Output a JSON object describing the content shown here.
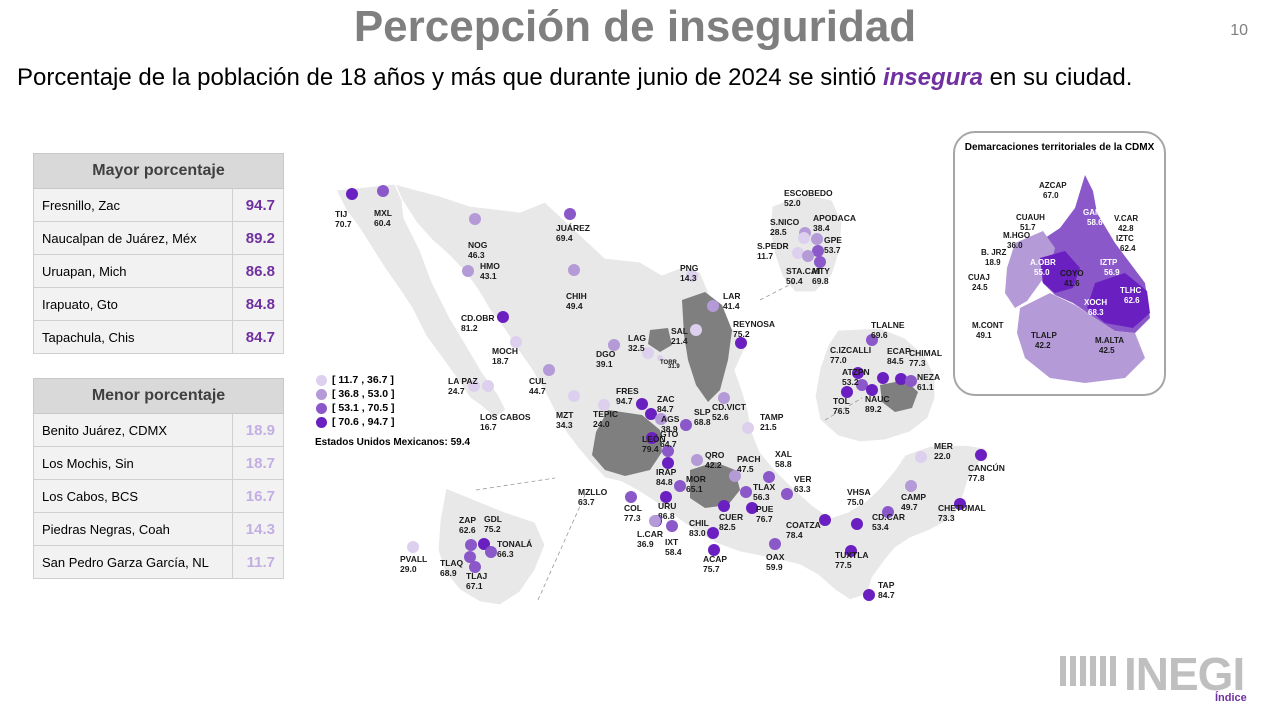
{
  "header": {
    "title": "Percepción de inseguridad",
    "page_number": "10",
    "subtitle_before": "Porcentaje de la población de 18 años y más que durante junio de 2024 se sintió ",
    "subtitle_highlight": "insegura",
    "subtitle_after": " en su ciudad."
  },
  "tables": {
    "mayor": {
      "header": "Mayor porcentaje",
      "rows": [
        {
          "city": "Fresnillo, Zac",
          "value": "94.7"
        },
        {
          "city": "Naucalpan de Juárez, Méx",
          "value": "89.2"
        },
        {
          "city": "Uruapan, Mich",
          "value": "86.8"
        },
        {
          "city": "Irapuato, Gto",
          "value": "84.8"
        },
        {
          "city": "Tapachula, Chis",
          "value": "84.7"
        }
      ]
    },
    "menor": {
      "header": "Menor porcentaje",
      "rows": [
        {
          "city": "Benito Juárez, CDMX",
          "value": "18.9"
        },
        {
          "city": "Los Mochis, Sin",
          "value": "18.7"
        },
        {
          "city": "Los Cabos, BCS",
          "value": "16.7"
        },
        {
          "city": "Piedras Negras, Coah",
          "value": "14.3"
        },
        {
          "city": "San Pedro Garza García, NL",
          "value": "11.7"
        }
      ]
    }
  },
  "legend": {
    "ranges": [
      {
        "label": "[ 11.7 , 36.7 ]",
        "color": "#ddd0ee"
      },
      {
        "label": "[ 36.8 , 53.0 ]",
        "color": "#b49ad6"
      },
      {
        "label": "[ 53.1 , 70.5 ]",
        "color": "#8a58c8"
      },
      {
        "label": "[ 70.6 , 94.7 ]",
        "color": "#6a1fc0"
      }
    ],
    "national_label": "Estados Unidos Mexicanos:",
    "national_value": "59.4"
  },
  "colors": {
    "accent": "#7030a0",
    "land": "#e8e8e8",
    "highlighted_state": "#7f7f7f",
    "cat1": "#ddd0ee",
    "cat2": "#b49ad6",
    "cat3": "#8a58c8",
    "cat4": "#6a1fc0"
  },
  "cities": [
    {
      "name": "TIJ",
      "value": "70.7",
      "cat": 4
    },
    {
      "name": "MXL",
      "value": "60.4",
      "cat": 3
    },
    {
      "name": "NOG",
      "value": "46.3",
      "cat": 2
    },
    {
      "name": "HMO",
      "value": "43.1",
      "cat": 2
    },
    {
      "name": "JUÁREZ",
      "value": "69.4",
      "cat": 3
    },
    {
      "name": "CHIH",
      "value": "49.4",
      "cat": 2
    },
    {
      "name": "CD.OBR",
      "value": "81.2",
      "cat": 4
    },
    {
      "name": "MOCH",
      "value": "18.7",
      "cat": 1
    },
    {
      "name": "LA PAZ",
      "value": "24.7",
      "cat": 1
    },
    {
      "name": "LOS CABOS",
      "value": "16.7",
      "cat": 1
    },
    {
      "name": "CUL",
      "value": "44.7",
      "cat": 2
    },
    {
      "name": "MZT",
      "value": "34.3",
      "cat": 1
    },
    {
      "name": "DGO",
      "value": "39.1",
      "cat": 2
    },
    {
      "name": "LAG",
      "value": "32.5",
      "cat": 1
    },
    {
      "name": "TORR",
      "value": "31.9",
      "cat": 1
    },
    {
      "name": "SAL",
      "value": "21.4",
      "cat": 1
    },
    {
      "name": "PNG",
      "value": "14.3",
      "cat": 1
    },
    {
      "name": "LAR",
      "value": "41.4",
      "cat": 2
    },
    {
      "name": "REYNOSA",
      "value": "75.2",
      "cat": 4
    },
    {
      "name": "ESCOBEDO",
      "value": "52.0",
      "cat": 2
    },
    {
      "name": "S.NICO",
      "value": "28.5",
      "cat": 1
    },
    {
      "name": "APODACA",
      "value": "38.4",
      "cat": 2
    },
    {
      "name": "S.PEDR",
      "value": "11.7",
      "cat": 1
    },
    {
      "name": "GPE",
      "value": "53.7",
      "cat": 3
    },
    {
      "name": "STA.CAT",
      "value": "50.4",
      "cat": 2
    },
    {
      "name": "MTY",
      "value": "69.8",
      "cat": 3
    },
    {
      "name": "FRES",
      "value": "94.7",
      "cat": 4
    },
    {
      "name": "ZAC",
      "value": "84.7",
      "cat": 4
    },
    {
      "name": "TEPIC",
      "value": "24.0",
      "cat": 1
    },
    {
      "name": "AGS",
      "value": "38.9",
      "cat": 2
    },
    {
      "name": "SLP",
      "value": "68.8",
      "cat": 3
    },
    {
      "name": "CD.VICT",
      "value": "52.6",
      "cat": 2
    },
    {
      "name": "TAMP",
      "value": "21.5",
      "cat": 1
    },
    {
      "name": "LEÓN",
      "value": "79.4",
      "cat": 4
    },
    {
      "name": "GTO",
      "value": "64.7",
      "cat": 3
    },
    {
      "name": "IRAP",
      "value": "84.8",
      "cat": 4
    },
    {
      "name": "QRO",
      "value": "42.2",
      "cat": 2
    },
    {
      "name": "MOR",
      "value": "65.1",
      "cat": 3
    },
    {
      "name": "URU",
      "value": "86.8",
      "cat": 4
    },
    {
      "name": "PACH",
      "value": "47.5",
      "cat": 2
    },
    {
      "name": "XAL",
      "value": "58.8",
      "cat": 3
    },
    {
      "name": "TLAX",
      "value": "56.3",
      "cat": 3
    },
    {
      "name": "VER",
      "value": "63.3",
      "cat": 3
    },
    {
      "name": "PUE",
      "value": "76.7",
      "cat": 4
    },
    {
      "name": "CUER",
      "value": "82.5",
      "cat": 4
    },
    {
      "name": "MZLLO",
      "value": "63.7",
      "cat": 3
    },
    {
      "name": "COL",
      "value": "77.3",
      "cat": 4
    },
    {
      "name": "L.CAR",
      "value": "36.9",
      "cat": 2
    },
    {
      "name": "IXT",
      "value": "58.4",
      "cat": 3
    },
    {
      "name": "CHIL",
      "value": "83.0",
      "cat": 4
    },
    {
      "name": "ACAP",
      "value": "75.7",
      "cat": 4
    },
    {
      "name": "OAX",
      "value": "59.9",
      "cat": 3
    },
    {
      "name": "COATZA",
      "value": "78.4",
      "cat": 4
    },
    {
      "name": "VHSA",
      "value": "75.0",
      "cat": 4
    },
    {
      "name": "CD.CAR",
      "value": "53.4",
      "cat": 3
    },
    {
      "name": "CAMP",
      "value": "49.7",
      "cat": 2
    },
    {
      "name": "TUXTLA",
      "value": "77.5",
      "cat": 4
    },
    {
      "name": "TAP",
      "value": "84.7",
      "cat": 4
    },
    {
      "name": "MER",
      "value": "22.0",
      "cat": 1
    },
    {
      "name": "CANCÚN",
      "value": "77.8",
      "cat": 4
    },
    {
      "name": "CHETUMAL",
      "value": "73.3",
      "cat": 4
    },
    {
      "name": "ZAP",
      "value": "62.6",
      "cat": 3
    },
    {
      "name": "GDL",
      "value": "75.2",
      "cat": 4
    },
    {
      "name": "TLAQ",
      "value": "68.9",
      "cat": 3
    },
    {
      "name": "TONALÁ",
      "value": "66.3",
      "cat": 3
    },
    {
      "name": "TLAJ",
      "value": "67.1",
      "cat": 3
    },
    {
      "name": "PVALL",
      "value": "29.0",
      "cat": 1
    },
    {
      "name": "TLALNE",
      "value": "69.6",
      "cat": 3
    },
    {
      "name": "C.IZCALLI",
      "value": "77.0",
      "cat": 4
    },
    {
      "name": "ECAP",
      "value": "84.5",
      "cat": 4
    },
    {
      "name": "CHIMAL",
      "value": "77.3",
      "cat": 4
    },
    {
      "name": "ATZPN",
      "value": "53.2",
      "cat": 3
    },
    {
      "name": "NEZA",
      "value": "61.1",
      "cat": 3
    },
    {
      "name": "TOL",
      "value": "76.5",
      "cat": 4
    },
    {
      "name": "NAUC",
      "value": "89.2",
      "cat": 4
    }
  ],
  "cdmx": {
    "title": "Demarcaciones territoriales de la CDMX",
    "alcaldias": [
      {
        "name": "AZCAP",
        "value": "67.0"
      },
      {
        "name": "GAM",
        "value": "58.6"
      },
      {
        "name": "CUAUH",
        "value": "51.7"
      },
      {
        "name": "V.CAR",
        "value": "42.8"
      },
      {
        "name": "M.HGO",
        "value": "36.0"
      },
      {
        "name": "IZTC",
        "value": "62.4"
      },
      {
        "name": "B. JRZ",
        "value": "18.9"
      },
      {
        "name": "A.OBR",
        "value": "55.0"
      },
      {
        "name": "IZTP",
        "value": "56.9"
      },
      {
        "name": "COYO",
        "value": "41.6"
      },
      {
        "name": "CUAJ",
        "value": "24.5"
      },
      {
        "name": "TLHC",
        "value": "62.6"
      },
      {
        "name": "XOCH",
        "value": "68.3"
      },
      {
        "name": "M.CONT",
        "value": "49.1"
      },
      {
        "name": "TLALP",
        "value": "42.2"
      },
      {
        "name": "M.ALTA",
        "value": "42.5"
      }
    ]
  },
  "logo": {
    "text": "INEGI",
    "link": "Índice"
  }
}
